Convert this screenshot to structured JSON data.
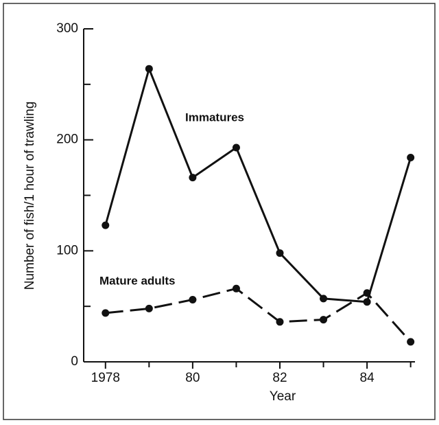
{
  "chart_data": {
    "type": "line",
    "xlabel": "Year",
    "ylabel": "Number of fish/1 hour of trawling",
    "x": [
      1978,
      1979,
      1980,
      1981,
      1982,
      1983,
      1984,
      1985
    ],
    "series": [
      {
        "name": "Immatures",
        "color": "#111111",
        "dash": false,
        "values": [
          123,
          264,
          166,
          193,
          98,
          57,
          54,
          184
        ]
      },
      {
        "name": "Mature adults",
        "color": "#111111",
        "dash": true,
        "values": [
          44,
          48,
          56,
          66,
          36,
          38,
          62,
          18
        ]
      }
    ],
    "xlim": [
      1977.5,
      1985.1
    ],
    "xticks": [
      1978,
      {
        "value": 1980,
        "label": "80"
      },
      {
        "value": 1982,
        "label": "82"
      },
      {
        "value": 1984,
        "label": "84"
      }
    ],
    "xminor": [
      1979,
      1981,
      1983,
      1985
    ],
    "ylim": [
      0,
      300
    ],
    "yticks": [
      0,
      100,
      200,
      300
    ],
    "yminor": [
      50,
      150,
      250
    ]
  }
}
